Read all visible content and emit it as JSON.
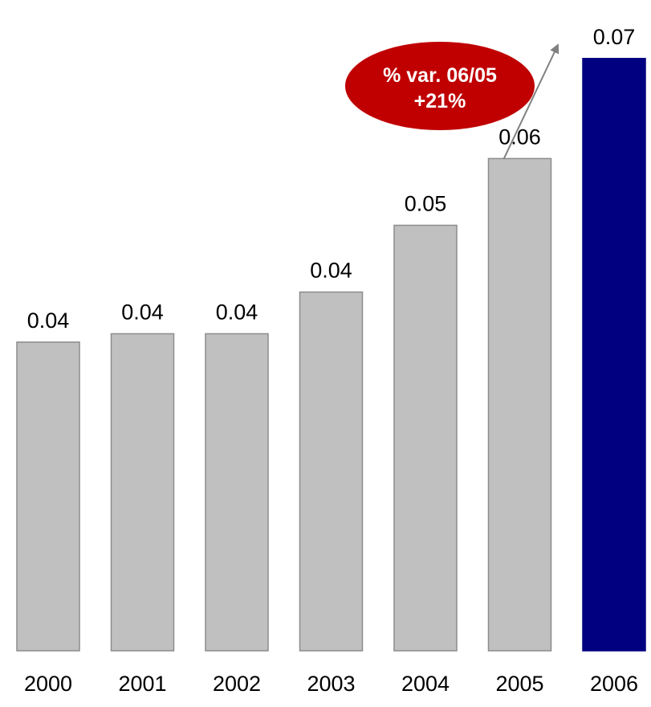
{
  "chart_data": {
    "type": "bar",
    "categories": [
      "2000",
      "2001",
      "2002",
      "2003",
      "2004",
      "2005",
      "2006"
    ],
    "values": [
      0.037,
      0.038,
      0.038,
      0.043,
      0.051,
      0.059,
      0.071
    ],
    "value_labels": [
      "0.04",
      "0.04",
      "0.04",
      "0.04",
      "0.05",
      "0.06",
      "0.07"
    ],
    "title": "",
    "xlabel": "",
    "ylabel": "",
    "ylim": [
      0,
      0.073
    ],
    "grid": false,
    "legend": "none",
    "highlight_category": "2006",
    "colors": {
      "bar": "#c0c0c0",
      "bar_border": "#8c8c8c",
      "highlight": "#000080",
      "callout_fill": "#c00000",
      "callout_text": "#ffffff",
      "arrow": "#808080"
    },
    "annotation": {
      "line1": "% var. 06/05",
      "line2": "+21%",
      "from_category": "2005",
      "to_category": "2006"
    }
  }
}
